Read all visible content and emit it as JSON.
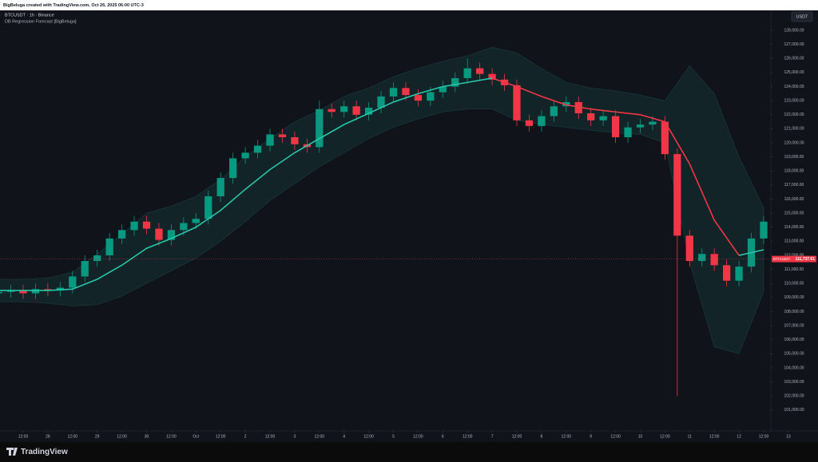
{
  "chart_data": {
    "type": "candlestick",
    "credit": "BigBeluga created with TradingView.com, Oct 26, 2025 06:00 UTC-3",
    "title": "BTCUSDT · 1h · Binance",
    "subtitle": "DB Regression Forecast [BigBeluga]",
    "currency": "USDT",
    "up_color": "#089981",
    "down_color": "#f23645",
    "grid": false,
    "xlim": [
      0.74,
      375.5
    ],
    "ylim": [
      99520,
      129420
    ],
    "xticks": [
      {
        "value": 12,
        "label": "12:00"
      },
      {
        "value": 24,
        "label": "28"
      },
      {
        "value": 36,
        "label": "12:00"
      },
      {
        "value": 48,
        "label": "29"
      },
      {
        "value": 60,
        "label": "12:00"
      },
      {
        "value": 72,
        "label": "30"
      },
      {
        "value": 84,
        "label": "12:00"
      },
      {
        "value": 96,
        "label": "Oct"
      },
      {
        "value": 108,
        "label": "12:00"
      },
      {
        "value": 120,
        "label": "2"
      },
      {
        "value": 132,
        "label": "12:00"
      },
      {
        "value": 144,
        "label": "3"
      },
      {
        "value": 156,
        "label": "12:00"
      },
      {
        "value": 168,
        "label": "4"
      },
      {
        "value": 180,
        "label": "12:00"
      },
      {
        "value": 192,
        "label": "5"
      },
      {
        "value": 204,
        "label": "12:00"
      },
      {
        "value": 216,
        "label": "6"
      },
      {
        "value": 228,
        "label": "12:00"
      },
      {
        "value": 240,
        "label": "7"
      },
      {
        "value": 252,
        "label": "12:00"
      },
      {
        "value": 264,
        "label": "8"
      },
      {
        "value": 276,
        "label": "12:00"
      },
      {
        "value": 288,
        "label": "9"
      },
      {
        "value": 300,
        "label": "12:00"
      },
      {
        "value": 312,
        "label": "10"
      },
      {
        "value": 324,
        "label": "12:00"
      },
      {
        "value": 336,
        "label": "11"
      },
      {
        "value": 348,
        "label": "12:00"
      },
      {
        "value": 360,
        "label": "12"
      },
      {
        "value": 372,
        "label": "12:00"
      },
      {
        "value": 384,
        "label": "13"
      }
    ],
    "yticks": [
      {
        "value": 101000,
        "label": "101,000.00"
      },
      {
        "value": 102000,
        "label": "102,000.00"
      },
      {
        "value": 103000,
        "label": "103,000.00"
      },
      {
        "value": 104000,
        "label": "104,000.00"
      },
      {
        "value": 105000,
        "label": "105,000.00"
      },
      {
        "value": 106000,
        "label": "106,000.00"
      },
      {
        "value": 107000,
        "label": "107,000.00"
      },
      {
        "value": 108000,
        "label": "108,000.00"
      },
      {
        "value": 109000,
        "label": "109,000.00"
      },
      {
        "value": 110000,
        "label": "110,000.00"
      },
      {
        "value": 111000,
        "label": "111,000.00"
      },
      {
        "value": 112000,
        "label": "112,000.00"
      },
      {
        "value": 113000,
        "label": "113,000.00"
      },
      {
        "value": 114000,
        "label": "114,000.00"
      },
      {
        "value": 115000,
        "label": "115,000.00"
      },
      {
        "value": 116000,
        "label": "116,000.00"
      },
      {
        "value": 117000,
        "label": "117,000.00"
      },
      {
        "value": 118000,
        "label": "118,000.00"
      },
      {
        "value": 119000,
        "label": "119,000.00"
      },
      {
        "value": 120000,
        "label": "120,000.00"
      },
      {
        "value": 121000,
        "label": "121,000.00"
      },
      {
        "value": 122000,
        "label": "122,000.00"
      },
      {
        "value": 123000,
        "label": "123,000.00"
      },
      {
        "value": 124000,
        "label": "124,000.00"
      },
      {
        "value": 125000,
        "label": "125,000.00"
      },
      {
        "value": 126000,
        "label": "126,000.00"
      },
      {
        "value": 127000,
        "label": "127,000.00"
      },
      {
        "value": 128000,
        "label": "128,000.00"
      }
    ],
    "candles": {
      "x": [
        0,
        6,
        12,
        18,
        24,
        30,
        36,
        42,
        48,
        54,
        60,
        66,
        72,
        78,
        84,
        90,
        96,
        102,
        108,
        114,
        120,
        126,
        132,
        138,
        144,
        150,
        156,
        162,
        168,
        174,
        180,
        186,
        192,
        198,
        204,
        210,
        216,
        222,
        228,
        234,
        240,
        246,
        252,
        258,
        264,
        270,
        276,
        282,
        288,
        294,
        300,
        306,
        312,
        318,
        324,
        330,
        336,
        342,
        348,
        354,
        360,
        366,
        372
      ],
      "open": [
        109300,
        109400,
        109500,
        109300,
        109600,
        109500,
        109700,
        110500,
        111600,
        112000,
        113200,
        113800,
        114400,
        113900,
        113100,
        113800,
        114300,
        114600,
        116200,
        117500,
        118900,
        119300,
        119800,
        120600,
        120400,
        119900,
        119700,
        122400,
        122200,
        122600,
        122000,
        122500,
        123300,
        123900,
        123400,
        123000,
        123600,
        124000,
        124600,
        125300,
        124900,
        124500,
        124100,
        121600,
        121200,
        121900,
        122600,
        122900,
        122100,
        121600,
        121900,
        120400,
        121100,
        121300,
        121500,
        119200,
        113400,
        111600,
        112100,
        111300,
        110200,
        111200,
        113200
      ],
      "high": [
        109800,
        109900,
        109900,
        110000,
        110000,
        110100,
        110900,
        112000,
        112400,
        113600,
        114200,
        114800,
        114800,
        114300,
        114200,
        114700,
        115000,
        116600,
        117900,
        119300,
        119700,
        120200,
        121000,
        121000,
        120800,
        120300,
        123000,
        122800,
        123000,
        123000,
        122900,
        123700,
        124300,
        124300,
        123800,
        124000,
        124400,
        125000,
        126000,
        125700,
        125300,
        124900,
        124500,
        122000,
        122300,
        123000,
        123300,
        123300,
        122500,
        122300,
        122300,
        121500,
        121700,
        121900,
        121900,
        119600,
        113800,
        112500,
        112500,
        111700,
        111600,
        113600,
        114800
      ],
      "low": [
        108900,
        109000,
        108900,
        108900,
        109100,
        109100,
        109300,
        110100,
        111200,
        111600,
        112800,
        113400,
        113500,
        112700,
        112700,
        113400,
        113900,
        114200,
        115800,
        117100,
        118500,
        118900,
        119400,
        120000,
        119500,
        119300,
        119300,
        121800,
        121800,
        121600,
        121600,
        122100,
        122900,
        123000,
        122600,
        122600,
        123200,
        123600,
        124200,
        124500,
        124100,
        123700,
        121200,
        120800,
        120800,
        121500,
        122200,
        121700,
        121200,
        121200,
        120000,
        120000,
        120700,
        120900,
        118800,
        102000,
        111200,
        111200,
        110900,
        109800,
        109800,
        110800,
        112800
      ],
      "close": [
        109400,
        109500,
        109300,
        109600,
        109500,
        109700,
        110500,
        111600,
        112000,
        113200,
        113800,
        114400,
        113900,
        113100,
        113800,
        114300,
        114600,
        116200,
        117500,
        118900,
        119300,
        119800,
        120600,
        120400,
        119900,
        119700,
        122400,
        122200,
        122600,
        122000,
        122500,
        123300,
        123900,
        123400,
        123000,
        123600,
        124000,
        124600,
        125300,
        124900,
        124500,
        124100,
        121600,
        121200,
        121900,
        122600,
        122900,
        122100,
        121600,
        121900,
        120400,
        121100,
        121300,
        121500,
        119200,
        113400,
        111600,
        112100,
        111300,
        110200,
        111200,
        113200,
        114400
      ]
    },
    "regression": {
      "x": [
        0,
        12,
        24,
        36,
        48,
        60,
        72,
        84,
        96,
        108,
        120,
        132,
        144,
        156,
        168,
        180,
        192,
        204,
        216,
        228,
        240,
        252,
        264,
        276,
        288,
        300,
        312,
        324,
        336,
        348,
        360,
        372
      ],
      "band_color": "#26a69a",
      "upper": [
        110300,
        110300,
        110400,
        110800,
        112100,
        113500,
        115000,
        115500,
        116200,
        117400,
        119000,
        120300,
        121500,
        122300,
        123300,
        123900,
        124700,
        125300,
        125800,
        126200,
        126800,
        126400,
        125300,
        124300,
        123900,
        123700,
        123400,
        123000,
        125500,
        123500,
        119000,
        115400
      ],
      "lower": [
        108700,
        108700,
        108600,
        108400,
        108500,
        109100,
        110000,
        110900,
        111800,
        113000,
        114400,
        115900,
        117100,
        118300,
        119300,
        120300,
        121100,
        121700,
        122200,
        122400,
        122400,
        121600,
        121300,
        121100,
        120900,
        120700,
        120600,
        120000,
        111500,
        105500,
        105000,
        109400
      ],
      "series": [
        {
          "color": "#26c6a6",
          "values": [
            109500,
            109500,
            109500,
            109600,
            110300,
            111300,
            112500,
            113200,
            114000,
            115200,
            116700,
            118100,
            119300,
            120300,
            121300,
            122100,
            122900,
            123500,
            124000,
            124300,
            124600,
            null,
            null,
            null,
            null,
            null,
            null,
            null,
            null,
            null,
            112000,
            112400
          ]
        },
        {
          "color": "#f23645",
          "values": [
            null,
            null,
            null,
            null,
            null,
            null,
            null,
            null,
            null,
            null,
            null,
            null,
            null,
            null,
            null,
            null,
            null,
            null,
            null,
            null,
            124600,
            124000,
            123300,
            122700,
            122400,
            122200,
            122000,
            121500,
            118500,
            114500,
            112000,
            null
          ]
        }
      ]
    },
    "price_label": {
      "symbol": "BTCUSDT",
      "value": 111737.61,
      "label": "111,737.61",
      "color": "#f23645"
    }
  },
  "footer": {
    "brand": "TradingView"
  }
}
